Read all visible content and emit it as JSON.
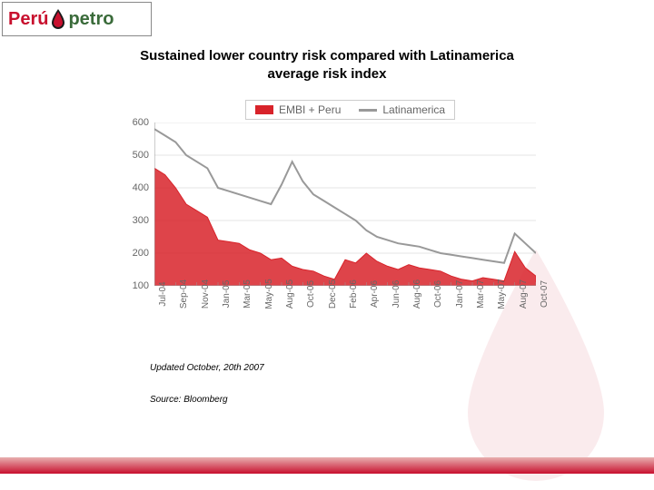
{
  "logo": {
    "peru": "Perú",
    "petro": "petro"
  },
  "title": "Sustained lower country risk compared with Latinamerica\naverage risk index",
  "legend": {
    "series_a": "EMBI + Peru",
    "series_b": "Latinamerica",
    "color_a": "#d8232a",
    "color_b": "#999999"
  },
  "chart": {
    "type": "area-line",
    "ylim": [
      100,
      600
    ],
    "ytick_step": 100,
    "yticks": [
      100,
      200,
      300,
      400,
      500,
      600
    ],
    "x_labels": [
      "Jul-04",
      "Sep-04",
      "Nov-04",
      "Jan-05",
      "Mar-05",
      "May-05",
      "Aug-05",
      "Oct-05",
      "Dec-05",
      "Feb-06",
      "Apr-06",
      "Jun-06",
      "Aug-06",
      "Oct-06",
      "Jan-07",
      "Mar-07",
      "May-07",
      "Aug-07",
      "Oct-07"
    ],
    "series_peru": {
      "color": "#d8232a",
      "fill": "#d8232a",
      "fill_opacity": 0.85,
      "values": [
        460,
        440,
        400,
        350,
        330,
        310,
        240,
        235,
        230,
        210,
        200,
        180,
        185,
        160,
        150,
        145,
        130,
        120,
        180,
        170,
        200,
        175,
        160,
        150,
        165,
        155,
        150,
        145,
        130,
        120,
        115,
        125,
        120,
        115,
        205,
        155,
        130
      ]
    },
    "series_latam": {
      "color": "#999999",
      "line_width": 2,
      "values": [
        580,
        560,
        540,
        500,
        480,
        460,
        400,
        390,
        380,
        370,
        360,
        350,
        410,
        480,
        420,
        380,
        360,
        340,
        320,
        300,
        270,
        250,
        240,
        230,
        225,
        220,
        210,
        200,
        195,
        190,
        185,
        180,
        175,
        170,
        260,
        230,
        200
      ]
    },
    "background_color": "#ffffff",
    "grid_color": "#cccccc",
    "tick_fontsize": 11,
    "tick_color": "#666666"
  },
  "footer": {
    "updated": "Updated October, 20th  2007",
    "source": "Source: Bloomberg"
  }
}
